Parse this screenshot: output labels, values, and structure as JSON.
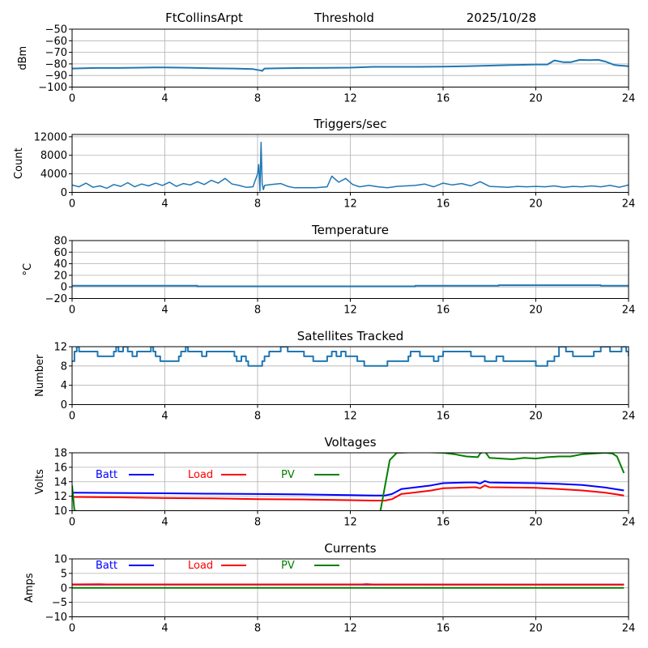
{
  "header": {
    "station": "FtCollinsArpt",
    "mode": "Threshold",
    "date": "2025/10/28"
  },
  "chart_data": [
    {
      "id": "threshold",
      "type": "line",
      "title": "",
      "xlabel": "",
      "ylabel": "dBm",
      "xlim": [
        0,
        24
      ],
      "ylim": [
        -100,
        -50
      ],
      "xticks": [
        0,
        4,
        8,
        12,
        16,
        20,
        24
      ],
      "yticks": [
        -100,
        -90,
        -80,
        -70,
        -60,
        -50
      ],
      "ytick_labels": [
        "−100",
        "−90",
        "−80",
        "−70",
        "−60",
        "−50"
      ],
      "grid": true,
      "series": [
        {
          "name": "Threshold",
          "color": "#1f77b4",
          "x": [
            0,
            1,
            2,
            3,
            3.5,
            4,
            5,
            6,
            7,
            7.8,
            8.1,
            8.2,
            8.3,
            9,
            10,
            11,
            12,
            13,
            14,
            15,
            16,
            17,
            18,
            19,
            20,
            20.5,
            20.8,
            21.2,
            21.5,
            21.9,
            22.3,
            22.7,
            23,
            23.4,
            24
          ],
          "values": [
            -84,
            -83.5,
            -83.5,
            -83.2,
            -83,
            -83,
            -83.3,
            -83.8,
            -84,
            -84.5,
            -85.5,
            -86,
            -84,
            -83.8,
            -83.5,
            -83.4,
            -83.2,
            -82.5,
            -82.5,
            -82.5,
            -82.3,
            -82,
            -81.5,
            -81,
            -80.5,
            -80.5,
            -77,
            -78.5,
            -78.5,
            -76.5,
            -76.8,
            -76.5,
            -78,
            -81,
            -82
          ]
        }
      ]
    },
    {
      "id": "triggers",
      "type": "line",
      "title": "Triggers/sec",
      "xlabel": "",
      "ylabel": "Count",
      "xlim": [
        0,
        24
      ],
      "ylim": [
        0,
        12500
      ],
      "xticks": [
        0,
        4,
        8,
        12,
        16,
        20,
        24
      ],
      "yticks": [
        0,
        4000,
        8000,
        12000
      ],
      "ytick_labels": [
        "0",
        "4000",
        "8000",
        "12000"
      ],
      "grid": true,
      "series": [
        {
          "name": "Triggers",
          "color": "#1f77b4",
          "x": [
            0,
            0.3,
            0.6,
            0.9,
            1.2,
            1.5,
            1.8,
            2.1,
            2.4,
            2.7,
            3.0,
            3.3,
            3.6,
            3.9,
            4.2,
            4.5,
            4.8,
            5.1,
            5.4,
            5.7,
            6.0,
            6.3,
            6.6,
            6.9,
            7.2,
            7.5,
            7.8,
            8.0,
            8.05,
            8.1,
            8.15,
            8.2,
            8.25,
            8.3,
            8.6,
            9.0,
            9.3,
            9.6,
            10.0,
            10.5,
            11.0,
            11.2,
            11.5,
            11.8,
            12.1,
            12.4,
            12.8,
            13.2,
            13.6,
            14.0,
            14.4,
            14.8,
            15.2,
            15.6,
            16.0,
            16.4,
            16.8,
            17.2,
            17.6,
            18.0,
            18.4,
            18.8,
            19.2,
            19.6,
            20.0,
            20.4,
            20.8,
            21.2,
            21.6,
            22.0,
            22.4,
            22.8,
            23.2,
            23.6,
            24
          ],
          "values": [
            1600,
            1200,
            2000,
            1100,
            1400,
            900,
            1700,
            1300,
            2100,
            1200,
            1800,
            1400,
            2000,
            1500,
            2200,
            1300,
            1900,
            1600,
            2300,
            1700,
            2600,
            2000,
            3000,
            1800,
            1500,
            1100,
            1200,
            4000,
            6000,
            300,
            10800,
            1800,
            600,
            1500,
            1700,
            1900,
            1300,
            1000,
            1000,
            1000,
            1200,
            3500,
            2200,
            3000,
            1700,
            1200,
            1500,
            1200,
            1000,
            1300,
            1400,
            1500,
            1800,
            1200,
            2000,
            1600,
            1900,
            1400,
            2300,
            1300,
            1200,
            1100,
            1300,
            1200,
            1300,
            1200,
            1400,
            1100,
            1300,
            1200,
            1400,
            1200,
            1500,
            1100,
            1600
          ]
        }
      ]
    },
    {
      "id": "temperature",
      "type": "line",
      "title": "Temperature",
      "xlabel": "",
      "ylabel": "°C",
      "xlim": [
        0,
        24
      ],
      "ylim": [
        -20,
        80
      ],
      "xticks": [
        0,
        4,
        8,
        12,
        16,
        20,
        24
      ],
      "yticks": [
        -20,
        0,
        20,
        40,
        60,
        80
      ],
      "ytick_labels": [
        "−20",
        "0",
        "20",
        "40",
        "60",
        "80"
      ],
      "grid": true,
      "series": [
        {
          "name": "Temperature",
          "color": "#1f77b4",
          "x": [
            0,
            5.4,
            5.4,
            14.8,
            14.8,
            18.4,
            18.4,
            22.8,
            22.8,
            24
          ],
          "values": [
            2,
            2,
            1,
            1,
            2,
            2,
            3,
            3,
            2,
            2
          ]
        }
      ]
    },
    {
      "id": "satellites",
      "type": "line",
      "title": "Satellites Tracked",
      "xlabel": "",
      "ylabel": "Number",
      "xlim": [
        0,
        24
      ],
      "ylim": [
        0,
        12
      ],
      "xticks": [
        0,
        4,
        8,
        12,
        16,
        20,
        24
      ],
      "yticks": [
        0,
        4,
        8,
        12
      ],
      "ytick_labels": [
        "0",
        "4",
        "8",
        "12"
      ],
      "grid": true,
      "series": [
        {
          "name": "Satellites",
          "color": "#1f77b4",
          "x": [
            0,
            0.1,
            0.2,
            0.3,
            0.4,
            1.1,
            1.8,
            1.9,
            2.0,
            2.2,
            2.4,
            2.6,
            2.8,
            3.0,
            3.4,
            3.5,
            3.6,
            3.8,
            4.4,
            4.6,
            4.7,
            4.9,
            5.0,
            5.6,
            5.8,
            6.0,
            6.5,
            7.0,
            7.1,
            7.3,
            7.5,
            7.6,
            7.8,
            8.0,
            8.2,
            8.3,
            8.5,
            8.8,
            9.0,
            9.3,
            9.6,
            10.0,
            10.4,
            10.8,
            11.0,
            11.2,
            11.4,
            11.6,
            11.8,
            12.0,
            12.3,
            12.6,
            13.0,
            13.3,
            13.6,
            14.0,
            14.5,
            14.6,
            14.8,
            15.0,
            15.3,
            15.6,
            15.8,
            16.0,
            16.5,
            17.0,
            17.2,
            17.5,
            17.8,
            18.0,
            18.3,
            18.6,
            18.9,
            19.2,
            19.6,
            20.0,
            20.5,
            20.8,
            21.0,
            21.3,
            21.6,
            22.0,
            22.5,
            22.8,
            23.0,
            23.2,
            23.5,
            23.7,
            23.9,
            24
          ],
          "values": [
            9,
            11,
            12,
            11,
            11,
            10,
            11,
            12,
            11,
            12,
            11,
            10,
            11,
            11,
            12,
            11,
            10,
            9,
            9,
            10,
            11,
            12,
            11,
            10,
            11,
            11,
            11,
            10,
            9,
            10,
            9,
            8,
            8,
            8,
            9,
            10,
            11,
            11,
            12,
            11,
            11,
            10,
            9,
            9,
            10,
            11,
            10,
            11,
            10,
            10,
            9,
            8,
            8,
            8,
            9,
            9,
            10,
            11,
            11,
            10,
            10,
            9,
            10,
            11,
            11,
            11,
            10,
            10,
            9,
            9,
            10,
            9,
            9,
            9,
            9,
            8,
            9,
            10,
            12,
            11,
            10,
            10,
            11,
            12,
            12,
            11,
            11,
            12,
            11,
            10
          ]
        }
      ]
    },
    {
      "id": "voltages",
      "type": "line",
      "title": "Voltages",
      "xlabel": "",
      "ylabel": "Volts",
      "xlim": [
        0,
        24
      ],
      "ylim": [
        10,
        18
      ],
      "xticks": [
        0,
        4,
        8,
        12,
        16,
        20,
        24
      ],
      "yticks": [
        10,
        12,
        14,
        16,
        18
      ],
      "ytick_labels": [
        "10",
        "12",
        "14",
        "16",
        "18"
      ],
      "grid": true,
      "legend": "top-left-inline",
      "series": [
        {
          "name": "Batt",
          "color": "#0000ff",
          "x": [
            0,
            2,
            4,
            6,
            8,
            10,
            12,
            13,
            13.5,
            13.8,
            14.2,
            15.0,
            15.5,
            16.0,
            17.0,
            17.4,
            17.6,
            17.8,
            18.0,
            19.0,
            20.0,
            21.0,
            22.0,
            23.0,
            23.8
          ],
          "values": [
            12.5,
            12.45,
            12.4,
            12.35,
            12.3,
            12.25,
            12.15,
            12.1,
            12.1,
            12.3,
            13.0,
            13.3,
            13.5,
            13.8,
            13.9,
            13.9,
            13.75,
            14.1,
            13.9,
            13.85,
            13.8,
            13.7,
            13.55,
            13.2,
            12.8
          ]
        },
        {
          "name": "Load",
          "color": "#ff0000",
          "x": [
            0,
            2,
            4,
            6,
            8,
            10,
            12,
            13,
            13.5,
            13.8,
            14.2,
            15.0,
            15.5,
            16.0,
            17.0,
            17.4,
            17.6,
            17.8,
            18.0,
            19.0,
            20.0,
            21.0,
            22.0,
            23.0,
            23.8
          ],
          "values": [
            11.9,
            11.85,
            11.75,
            11.7,
            11.6,
            11.55,
            11.45,
            11.4,
            11.4,
            11.6,
            12.3,
            12.6,
            12.8,
            13.1,
            13.2,
            13.25,
            13.1,
            13.5,
            13.25,
            13.2,
            13.15,
            13.0,
            12.8,
            12.5,
            12.1
          ]
        },
        {
          "name": "PV",
          "color": "#008000",
          "x": [
            0,
            0.1,
            13.0,
            13.3,
            13.7,
            14.0,
            15.0,
            16.0,
            16.5,
            17.0,
            17.5,
            17.6,
            17.8,
            18.0,
            18.5,
            19.0,
            19.5,
            20.0,
            20.5,
            21.0,
            21.5,
            22.0,
            22.5,
            23.0,
            23.3,
            23.5,
            23.8
          ],
          "values": [
            13.5,
            10.0,
            6.0,
            10.0,
            17.0,
            18.0,
            18.1,
            18.0,
            17.8,
            17.5,
            17.4,
            17.9,
            18.2,
            17.3,
            17.2,
            17.1,
            17.3,
            17.2,
            17.4,
            17.5,
            17.5,
            17.8,
            17.9,
            18.0,
            17.9,
            17.5,
            15.2
          ]
        }
      ]
    },
    {
      "id": "currents",
      "type": "line",
      "title": "Currents",
      "xlabel": "",
      "ylabel": "Amps",
      "xlim": [
        0,
        24
      ],
      "ylim": [
        -10,
        10
      ],
      "xticks": [
        0,
        4,
        8,
        12,
        16,
        20,
        24
      ],
      "yticks": [
        -10,
        -5,
        0,
        5,
        10
      ],
      "ytick_labels": [
        "−10",
        "−5",
        "0",
        "5",
        "10"
      ],
      "grid": true,
      "legend": "top-left-inline",
      "series": [
        {
          "name": "Batt",
          "color": "#0000ff",
          "x": [
            0,
            23.8
          ],
          "values": [
            1.1,
            1.1
          ]
        },
        {
          "name": "Load",
          "color": "#ff0000",
          "x": [
            0,
            1.2,
            1.5,
            12.5,
            12.7,
            13.0,
            23.8
          ],
          "values": [
            1.2,
            1.25,
            1.2,
            1.2,
            1.3,
            1.15,
            1.1
          ]
        },
        {
          "name": "PV",
          "color": "#008000",
          "x": [
            0,
            23.8
          ],
          "values": [
            0,
            0
          ]
        }
      ]
    }
  ]
}
